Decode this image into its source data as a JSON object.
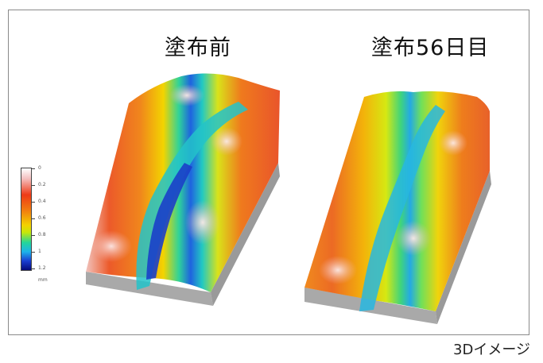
{
  "panels": [
    {
      "title": "塗布前"
    },
    {
      "title": "塗布56日目"
    }
  ],
  "colorbar": {
    "ticks": [
      "0",
      "0.2",
      "0.4",
      "0.6",
      "0.8",
      "1",
      "1.2"
    ],
    "unit": "mm"
  },
  "caption": "3Dイメージ",
  "colors": {
    "frame": "#8a8a8a",
    "high": "#ee3a16",
    "mid": "#f3d200",
    "low": "#1a3ed2",
    "base": "#a8a8a8"
  }
}
